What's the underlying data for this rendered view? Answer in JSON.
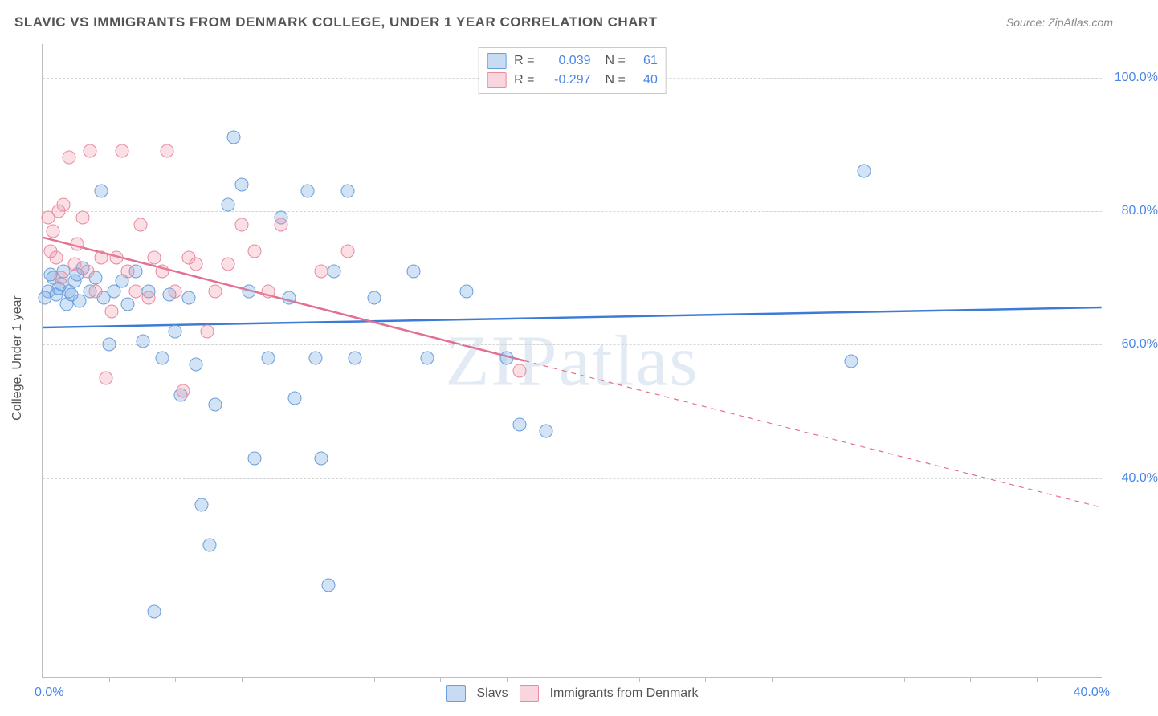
{
  "title": "SLAVIC VS IMMIGRANTS FROM DENMARK COLLEGE, UNDER 1 YEAR CORRELATION CHART",
  "source": "Source: ZipAtlas.com",
  "y_axis_label": "College, Under 1 year",
  "watermark": "ZIPatlas",
  "chart": {
    "type": "scatter",
    "xlim": [
      0,
      40
    ],
    "ylim": [
      10,
      105
    ],
    "x_tick_labels": {
      "left": "0.0%",
      "right": "40.0%"
    },
    "x_tick_positions_pct": [
      0,
      6.25,
      12.5,
      18.75,
      25,
      31.25,
      37.5,
      43.75,
      50,
      56.25,
      62.5,
      68.75,
      75,
      81.25,
      87.5,
      93.75,
      100
    ],
    "y_gridlines": [
      {
        "value": 40,
        "label": "40.0%"
      },
      {
        "value": 60,
        "label": "60.0%"
      },
      {
        "value": 80,
        "label": "80.0%"
      },
      {
        "value": 100,
        "label": "100.0%"
      }
    ],
    "colors": {
      "blue_fill": "rgba(130,175,230,0.35)",
      "blue_stroke": "#6a9ed8",
      "pink_fill": "rgba(240,150,170,0.30)",
      "pink_stroke": "#e88aa0",
      "blue_line": "#3d7cd6",
      "pink_line": "#e56f90",
      "grid": "#d5d5d5",
      "axis": "#bdbdbd",
      "tick_text": "#4a86e8",
      "text": "#555555",
      "background": "#ffffff"
    },
    "stats_legend": [
      {
        "series": "blue",
        "R": "0.039",
        "N": "61"
      },
      {
        "series": "pink",
        "R": "-0.297",
        "N": "40"
      }
    ],
    "bottom_legend": [
      {
        "series": "blue",
        "label": "Slavs"
      },
      {
        "series": "pink",
        "label": "Immigrants from Denmark"
      }
    ],
    "trend_lines": {
      "blue": {
        "x1": 0,
        "y1": 62.5,
        "x2": 40,
        "y2": 65.5,
        "width": 2.5
      },
      "pink_solid": {
        "x1": 0,
        "y1": 76,
        "x2": 18.2,
        "y2": 57.5,
        "width": 2.5
      },
      "pink_dash": {
        "x1": 18.2,
        "y1": 57.5,
        "x2": 40,
        "y2": 35.5,
        "width": 1.2
      }
    },
    "points": {
      "blue": [
        [
          0.2,
          68
        ],
        [
          0.4,
          70
        ],
        [
          0.5,
          67.5
        ],
        [
          0.6,
          68.5
        ],
        [
          0.7,
          69
        ],
        [
          0.8,
          71
        ],
        [
          0.3,
          70.5
        ],
        [
          1.0,
          68
        ],
        [
          1.2,
          69.5
        ],
        [
          1.4,
          66.5
        ],
        [
          1.5,
          71.5
        ],
        [
          1.8,
          68
        ],
        [
          2.0,
          70
        ],
        [
          2.2,
          83
        ],
        [
          2.3,
          67
        ],
        [
          2.5,
          60
        ],
        [
          2.7,
          68
        ],
        [
          3.0,
          69.5
        ],
        [
          3.2,
          66
        ],
        [
          3.5,
          71
        ],
        [
          3.8,
          60.5
        ],
        [
          4.0,
          68
        ],
        [
          4.2,
          20
        ],
        [
          4.5,
          58
        ],
        [
          4.8,
          67.5
        ],
        [
          5.0,
          62
        ],
        [
          5.2,
          52.5
        ],
        [
          5.5,
          67
        ],
        [
          5.8,
          57
        ],
        [
          6.0,
          36
        ],
        [
          6.3,
          30
        ],
        [
          6.5,
          51
        ],
        [
          7.0,
          81
        ],
        [
          7.2,
          91
        ],
        [
          7.5,
          84
        ],
        [
          7.8,
          68
        ],
        [
          8.0,
          43
        ],
        [
          8.5,
          58
        ],
        [
          9.0,
          79
        ],
        [
          9.3,
          67
        ],
        [
          9.5,
          52
        ],
        [
          10.0,
          83
        ],
        [
          10.3,
          58
        ],
        [
          10.5,
          43
        ],
        [
          10.8,
          24
        ],
        [
          11.0,
          71
        ],
        [
          11.5,
          83
        ],
        [
          11.8,
          58
        ],
        [
          12.5,
          67
        ],
        [
          14.0,
          71
        ],
        [
          14.5,
          58
        ],
        [
          16.0,
          68
        ],
        [
          17.5,
          58
        ],
        [
          18.0,
          48
        ],
        [
          19.0,
          47
        ],
        [
          30.5,
          57.5
        ],
        [
          31.0,
          86
        ],
        [
          0.1,
          67
        ],
        [
          0.9,
          66
        ],
        [
          1.1,
          67.5
        ],
        [
          1.3,
          70.5
        ]
      ],
      "pink": [
        [
          0.2,
          79
        ],
        [
          0.3,
          74
        ],
        [
          0.4,
          77
        ],
        [
          0.5,
          73
        ],
        [
          0.6,
          80
        ],
        [
          0.7,
          70
        ],
        [
          0.8,
          81
        ],
        [
          1.0,
          88
        ],
        [
          1.2,
          72
        ],
        [
          1.3,
          75
        ],
        [
          1.5,
          79
        ],
        [
          1.7,
          71
        ],
        [
          1.8,
          89
        ],
        [
          2.0,
          68
        ],
        [
          2.2,
          73
        ],
        [
          2.4,
          55
        ],
        [
          2.6,
          65
        ],
        [
          2.8,
          73
        ],
        [
          3.0,
          89
        ],
        [
          3.2,
          71
        ],
        [
          3.5,
          68
        ],
        [
          3.7,
          78
        ],
        [
          4.0,
          67
        ],
        [
          4.2,
          73
        ],
        [
          4.5,
          71
        ],
        [
          4.7,
          89
        ],
        [
          5.0,
          68
        ],
        [
          5.3,
          53
        ],
        [
          5.5,
          73
        ],
        [
          5.8,
          72
        ],
        [
          6.2,
          62
        ],
        [
          6.5,
          68
        ],
        [
          7.0,
          72
        ],
        [
          7.5,
          78
        ],
        [
          8.0,
          74
        ],
        [
          8.5,
          68
        ],
        [
          9.0,
          78
        ],
        [
          10.5,
          71
        ],
        [
          11.5,
          74
        ],
        [
          18.0,
          56
        ]
      ]
    }
  }
}
